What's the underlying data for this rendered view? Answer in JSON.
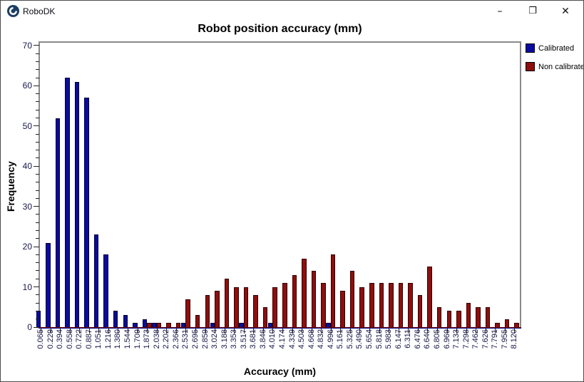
{
  "window": {
    "title": "RoboDK",
    "controls": {
      "minimize": "–",
      "maximize": "❐",
      "close": "✕"
    }
  },
  "chart_data": {
    "type": "bar",
    "title": "Robot position accuracy (mm)",
    "xlabel": "Accuracy (mm)",
    "ylabel": "Frequency",
    "ylim": [
      0,
      70
    ],
    "y_major_ticks": [
      0,
      10,
      20,
      30,
      40,
      50,
      60,
      70
    ],
    "y_minor_step": 2,
    "grid": false,
    "legend_position": "top-right-outside",
    "categories": [
      "0.065",
      "0.229",
      "0.394",
      "0.558",
      "0.722",
      "0.887",
      "1.051",
      "1.216",
      "1.380",
      "1.544",
      "1.709",
      "1.873",
      "2.038",
      "2.202",
      "2.366",
      "2.531",
      "2.695",
      "2.859",
      "3.024",
      "3.188",
      "3.353",
      "3.517",
      "3.681",
      "3.846",
      "4.010",
      "4.174",
      "4.339",
      "4.503",
      "4.668",
      "4.832",
      "4.996",
      "5.161",
      "5.325",
      "5.490",
      "5.654",
      "5.818",
      "5.983",
      "6.147",
      "6.311",
      "6.476",
      "6.640",
      "6.805",
      "6.969",
      "7.133",
      "7.298",
      "7.462",
      "7.626",
      "7.791",
      "7.955",
      "8.120"
    ],
    "series": [
      {
        "name": "Calibrated",
        "color": "#0b0b9e",
        "values": [
          4,
          21,
          52,
          62,
          61,
          57,
          23,
          18,
          4,
          3,
          1,
          2,
          1,
          0,
          0,
          1,
          0,
          0,
          1,
          0,
          0,
          1,
          0,
          0,
          1,
          0,
          0,
          0,
          0,
          0,
          1,
          0,
          0,
          0,
          0,
          0,
          0,
          0,
          0,
          0,
          0,
          0,
          0,
          0,
          0,
          0,
          0,
          0,
          0,
          0
        ]
      },
      {
        "name": "Non calibrated",
        "color": "#8e0e0e",
        "values": [
          0,
          0,
          0,
          0,
          0,
          0,
          0,
          0,
          0,
          0,
          0,
          1,
          1,
          1,
          1,
          7,
          3,
          8,
          9,
          12,
          10,
          10,
          8,
          5,
          10,
          11,
          13,
          17,
          14,
          11,
          18,
          9,
          14,
          10,
          11,
          11,
          11,
          11,
          11,
          8,
          15,
          5,
          4,
          4,
          6,
          5,
          5,
          1,
          2,
          1
        ]
      }
    ]
  }
}
